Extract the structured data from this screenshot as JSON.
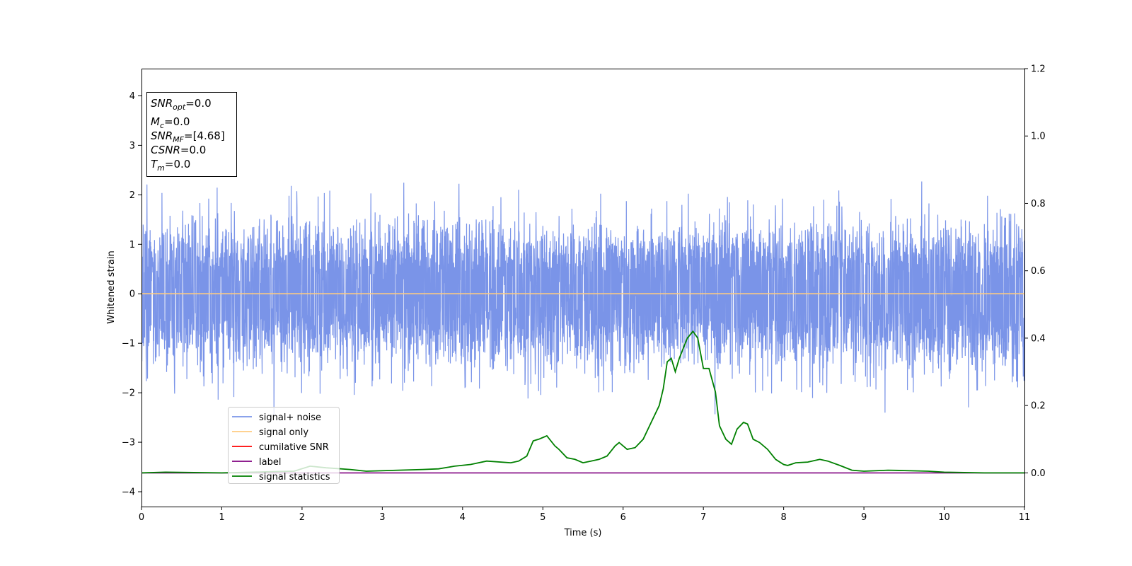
{
  "chart_data": {
    "type": "line",
    "xlabel": "Time (s)",
    "ylabel": "Whitened strain",
    "xlim": [
      0,
      11
    ],
    "ylim": [
      -4.3,
      4.55
    ],
    "y2lim": [
      -0.1,
      1.2
    ],
    "xticks": [
      "0",
      "1",
      "2",
      "3",
      "4",
      "5",
      "6",
      "7",
      "8",
      "9",
      "10",
      "11"
    ],
    "yticks": [
      "−4",
      "−3",
      "−2",
      "−1",
      "0",
      "1",
      "2",
      "3",
      "4"
    ],
    "y2ticks": [
      "0.0",
      "0.2",
      "0.4",
      "0.6",
      "0.8",
      "1.0",
      "1.2"
    ],
    "grid": false,
    "legend_location": "lower-left",
    "annotation": {
      "lines": [
        {
          "base": "SNR",
          "sub": "opt",
          "value": "=0.0"
        },
        {
          "base": "M",
          "sub": "c",
          "value": "=0.0"
        },
        {
          "base": "SNR",
          "sub": "MF",
          "value": "=[4.68]"
        },
        {
          "base": "CSNR",
          "sub": "",
          "value": "=0.0"
        },
        {
          "base": "T",
          "sub": "m",
          "value": "=0.0"
        }
      ]
    },
    "series": [
      {
        "name": "signal+ noise",
        "axis": "left",
        "color": "#7a94e8",
        "kind": "noise",
        "envelope_upper_typical": 1.6,
        "envelope_lower_typical": -1.6,
        "peak_max": 2.55,
        "peak_min": -2.55
      },
      {
        "name": "signal only",
        "axis": "left",
        "color": "#ffcc80",
        "x": [
          0,
          11
        ],
        "y": [
          0,
          0
        ]
      },
      {
        "name": "cumilative SNR",
        "axis": "left",
        "color": "#ff0000",
        "x": [],
        "y": []
      },
      {
        "name": "label",
        "axis": "right",
        "color": "#800080",
        "x": [
          0,
          11
        ],
        "y": [
          0,
          0
        ]
      },
      {
        "name": "signal statistics",
        "axis": "right",
        "color": "#008000",
        "x": [
          0,
          0.3,
          1.0,
          1.9,
          2.1,
          2.3,
          2.6,
          2.8,
          3.2,
          3.5,
          3.7,
          3.9,
          4.1,
          4.3,
          4.6,
          4.7,
          4.8,
          4.88,
          4.95,
          5.05,
          5.15,
          5.2,
          5.3,
          5.4,
          5.5,
          5.6,
          5.7,
          5.8,
          5.9,
          5.95,
          6.05,
          6.15,
          6.25,
          6.35,
          6.45,
          6.5,
          6.55,
          6.6,
          6.65,
          6.7,
          6.8,
          6.87,
          6.93,
          7.0,
          7.07,
          7.15,
          7.2,
          7.28,
          7.35,
          7.42,
          7.5,
          7.55,
          7.62,
          7.7,
          7.8,
          7.9,
          8.0,
          8.05,
          8.15,
          8.3,
          8.45,
          8.55,
          8.7,
          8.85,
          9.0,
          9.3,
          9.5,
          9.8,
          10.0,
          10.5,
          11.0
        ],
        "y": [
          0.0,
          0.002,
          0.0,
          0.005,
          0.02,
          0.015,
          0.01,
          0.005,
          0.008,
          0.01,
          0.012,
          0.02,
          0.025,
          0.035,
          0.03,
          0.035,
          0.05,
          0.095,
          0.1,
          0.11,
          0.08,
          0.07,
          0.045,
          0.04,
          0.03,
          0.035,
          0.04,
          0.05,
          0.08,
          0.09,
          0.07,
          0.075,
          0.1,
          0.15,
          0.2,
          0.25,
          0.33,
          0.34,
          0.3,
          0.34,
          0.4,
          0.42,
          0.4,
          0.31,
          0.31,
          0.24,
          0.14,
          0.1,
          0.085,
          0.13,
          0.15,
          0.145,
          0.1,
          0.09,
          0.07,
          0.04,
          0.025,
          0.022,
          0.03,
          0.032,
          0.04,
          0.035,
          0.022,
          0.008,
          0.005,
          0.008,
          0.007,
          0.005,
          0.002,
          0.0,
          0.0
        ]
      }
    ]
  }
}
